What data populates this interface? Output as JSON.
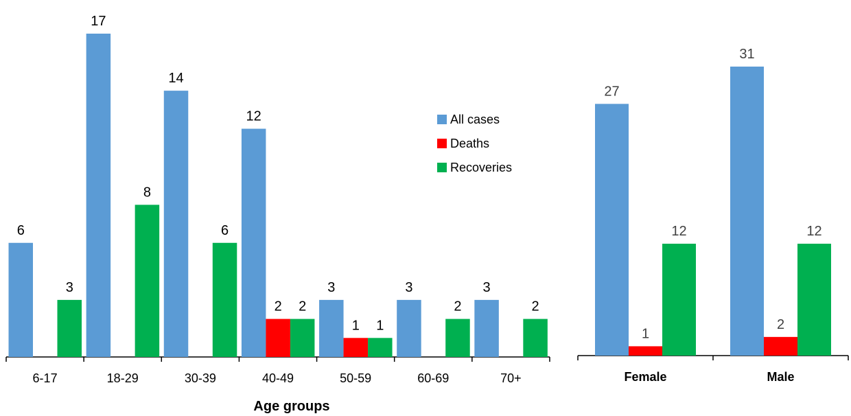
{
  "chart_data": [
    {
      "type": "bar",
      "xlabel": "Age groups",
      "categories": [
        "6-17",
        "18-29",
        "30-39",
        "40-49",
        "50-59",
        "60-69",
        "70+"
      ],
      "series": [
        {
          "name": "All cases",
          "color": "#5B9BD5",
          "values": [
            6,
            17,
            14,
            12,
            3,
            3,
            3
          ]
        },
        {
          "name": "Deaths",
          "color": "#FF0000",
          "values": [
            0,
            0,
            0,
            2,
            1,
            0,
            0
          ]
        },
        {
          "name": "Recoveries",
          "color": "#00B050",
          "values": [
            3,
            8,
            6,
            2,
            1,
            2,
            2
          ]
        }
      ],
      "ylim": [
        0,
        17
      ],
      "grid": false,
      "legend": "top-right"
    },
    {
      "type": "bar",
      "xlabel": "",
      "categories": [
        "Female",
        "Male"
      ],
      "series": [
        {
          "name": "All cases",
          "color": "#5B9BD5",
          "values": [
            27,
            31
          ]
        },
        {
          "name": "Deaths",
          "color": "#FF0000",
          "values": [
            1,
            2
          ]
        },
        {
          "name": "Recoveries",
          "color": "#00B050",
          "values": [
            12,
            12
          ]
        }
      ],
      "ylim": [
        0,
        31
      ],
      "grid": false
    }
  ]
}
